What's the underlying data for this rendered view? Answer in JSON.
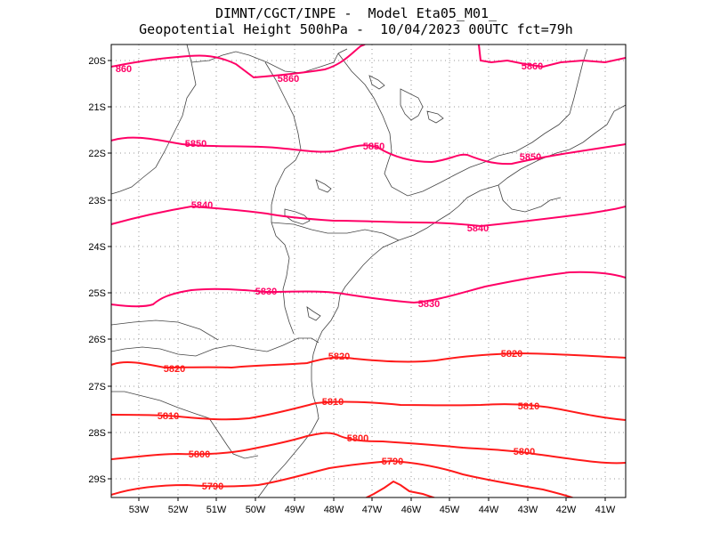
{
  "header": {
    "line1": "DIMNT/CGCT/INPE -  Model Eta05_M01_",
    "line2": "Geopotential Height 500hPa -  10/04/2023 00UTC fct=79h"
  },
  "map": {
    "lat_labels": [
      "20S",
      "21S",
      "22S",
      "23S",
      "24S",
      "25S",
      "26S",
      "27S",
      "28S",
      "29S"
    ],
    "lon_labels": [
      "53W",
      "52W",
      "51W",
      "50W",
      "49W",
      "48W",
      "47W",
      "46W",
      "45W",
      "44W",
      "43W",
      "42W",
      "41W"
    ],
    "colors": {
      "magenta_contours": "#ff0066",
      "red_contours": "#ff1a1a",
      "grid": "#999999",
      "coast": "#444444"
    },
    "contour_labels": {
      "c5860a": "860",
      "c5860b": "5860",
      "c5860c": "5860",
      "c5850a": "5850",
      "c5850b": "5850",
      "c5850c": "5850",
      "c5840a": "5840",
      "c5840b": "5840",
      "c5830a": "5830",
      "c5830b": "5830",
      "c5820a": "5820",
      "c5820b": "5820",
      "c5820c": "5820",
      "c5810a": "5810",
      "c5810b": "5810",
      "c5810c": "5810",
      "c5800a": "5800",
      "c5800b": "5800",
      "c5800c": "5800",
      "c5790a": "5790",
      "c5790b": "5790"
    }
  }
}
